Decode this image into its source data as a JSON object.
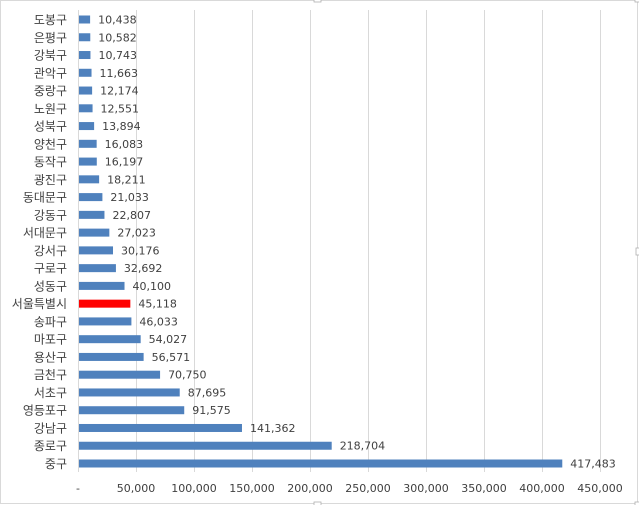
{
  "chart_data": {
    "type": "bar",
    "orientation": "horizontal",
    "title": "",
    "xlabel": "",
    "ylabel": "",
    "xlim": [
      0,
      450000
    ],
    "grid": true,
    "legend": "none",
    "x_ticks": [
      {
        "value": 0,
        "label": "-"
      },
      {
        "value": 50000,
        "label": "50,000"
      },
      {
        "value": 100000,
        "label": "100,000"
      },
      {
        "value": 150000,
        "label": "150,000"
      },
      {
        "value": 200000,
        "label": "200,000"
      },
      {
        "value": 250000,
        "label": "250,000"
      },
      {
        "value": 300000,
        "label": "300,000"
      },
      {
        "value": 350000,
        "label": "350,000"
      },
      {
        "value": 400000,
        "label": "400,000"
      },
      {
        "value": 450000,
        "label": "450,000"
      }
    ],
    "categories": [
      "도봉구",
      "은평구",
      "강북구",
      "관악구",
      "중랑구",
      "노원구",
      "성북구",
      "양천구",
      "동작구",
      "광진구",
      "동대문구",
      "강동구",
      "서대문구",
      "강서구",
      "구로구",
      "성동구",
      "서울특별시",
      "송파구",
      "마포구",
      "용산구",
      "금천구",
      "서초구",
      "영등포구",
      "강남구",
      "종로구",
      "중구"
    ],
    "values": [
      10438,
      10582,
      10743,
      11663,
      12174,
      12551,
      13894,
      16083,
      16197,
      18211,
      21033,
      22807,
      27023,
      30176,
      32692,
      40100,
      45118,
      46033,
      54027,
      56571,
      70750,
      87695,
      91575,
      141362,
      218704,
      417483
    ],
    "data_labels": [
      "10,438",
      "10,582",
      "10,743",
      "11,663",
      "12,174",
      "12,551",
      "13,894",
      "16,083",
      "16,197",
      "18,211",
      "21,033",
      "22,807",
      "27,023",
      "30,176",
      "32,692",
      "40,100",
      "45,118",
      "46,033",
      "54,027",
      "56,571",
      "70,750",
      "87,695",
      "91,575",
      "141,362",
      "218,704",
      "417,483"
    ],
    "highlight_category": "서울특별시",
    "colors": {
      "bar": "#4f81bd",
      "highlight": "#ff0000",
      "grid": "#d9d9d9",
      "text": "#404040",
      "border": "#d9d9d9"
    }
  }
}
